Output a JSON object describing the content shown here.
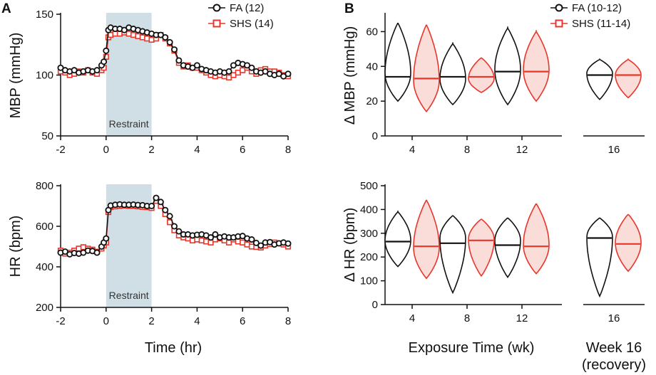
{
  "colors": {
    "fa": "#111111",
    "shs": "#e8362b",
    "shade": "#d0dfe6",
    "shs_fill": "#fadcd8"
  },
  "chart_data": [
    {
      "panel": "A",
      "type": "line",
      "ylabel": "MBP (mmHg)",
      "xlabel": "",
      "xlim": [
        -2,
        8
      ],
      "ylim": [
        50,
        150
      ],
      "xticks": [
        -2,
        0,
        2,
        4,
        6,
        8
      ],
      "yticks": [
        50,
        100,
        150
      ],
      "shade": {
        "x0": 0,
        "x1": 2,
        "label": "Restraint"
      },
      "legend": [
        "FA (12)",
        "SHS (14)"
      ],
      "series": [
        {
          "name": "FA (12)",
          "marker": "circle",
          "points": [
            [
              -2,
              106
            ],
            [
              -1.8,
              104
            ],
            [
              -1.6,
              103
            ],
            [
              -1.4,
              104
            ],
            [
              -1.2,
              102
            ],
            [
              -1,
              103
            ],
            [
              -0.8,
              104
            ],
            [
              -0.6,
              103
            ],
            [
              -0.4,
              104
            ],
            [
              -0.2,
              108
            ],
            [
              -0.1,
              111
            ],
            [
              0,
              120
            ],
            [
              0.1,
              137
            ],
            [
              0.2,
              139
            ],
            [
              0.4,
              138
            ],
            [
              0.6,
              138
            ],
            [
              0.8,
              137
            ],
            [
              1,
              139
            ],
            [
              1.2,
              138
            ],
            [
              1.4,
              137
            ],
            [
              1.6,
              136
            ],
            [
              1.8,
              135
            ],
            [
              2,
              134
            ],
            [
              2.2,
              133
            ],
            [
              2.4,
              133
            ],
            [
              2.6,
              131
            ],
            [
              2.8,
              127
            ],
            [
              3,
              121
            ],
            [
              3.2,
              112
            ],
            [
              3.4,
              108
            ],
            [
              3.6,
              107
            ],
            [
              3.8,
              106
            ],
            [
              4,
              108
            ],
            [
              4.2,
              105
            ],
            [
              4.4,
              104
            ],
            [
              4.6,
              103
            ],
            [
              4.8,
              102
            ],
            [
              5,
              103
            ],
            [
              5.2,
              102
            ],
            [
              5.4,
              103
            ],
            [
              5.6,
              108
            ],
            [
              5.8,
              110
            ],
            [
              6,
              109
            ],
            [
              6.2,
              108
            ],
            [
              6.4,
              106
            ],
            [
              6.6,
              103
            ],
            [
              6.8,
              102
            ],
            [
              7,
              103
            ],
            [
              7.2,
              101
            ],
            [
              7.4,
              100
            ],
            [
              7.6,
              101
            ],
            [
              7.8,
              99
            ],
            [
              8,
              101
            ]
          ]
        },
        {
          "name": "SHS (14)",
          "marker": "square",
          "points": [
            [
              -2,
              103
            ],
            [
              -1.8,
              102
            ],
            [
              -1.6,
              100
            ],
            [
              -1.4,
              101
            ],
            [
              -1.2,
              103
            ],
            [
              -1,
              102
            ],
            [
              -0.8,
              104
            ],
            [
              -0.6,
              102
            ],
            [
              -0.4,
              101
            ],
            [
              -0.2,
              104
            ],
            [
              -0.1,
              106
            ],
            [
              0,
              115
            ],
            [
              0.1,
              131
            ],
            [
              0.2,
              133
            ],
            [
              0.4,
              134
            ],
            [
              0.6,
              134
            ],
            [
              0.8,
              135
            ],
            [
              1,
              134
            ],
            [
              1.2,
              133
            ],
            [
              1.4,
              132
            ],
            [
              1.6,
              131
            ],
            [
              1.8,
              130
            ],
            [
              2,
              129
            ],
            [
              2.2,
              130
            ],
            [
              2.4,
              133
            ],
            [
              2.6,
              130
            ],
            [
              2.8,
              126
            ],
            [
              3,
              120
            ],
            [
              3.2,
              110
            ],
            [
              3.4,
              107
            ],
            [
              3.6,
              108
            ],
            [
              3.8,
              106
            ],
            [
              4,
              106
            ],
            [
              4.2,
              104
            ],
            [
              4.4,
              102
            ],
            [
              4.6,
              100
            ],
            [
              4.8,
              99
            ],
            [
              5,
              100
            ],
            [
              5.2,
              99
            ],
            [
              5.4,
              98
            ],
            [
              5.6,
              100
            ],
            [
              5.8,
              102
            ],
            [
              6,
              104
            ],
            [
              6.2,
              106
            ],
            [
              6.4,
              103
            ],
            [
              6.6,
              101
            ],
            [
              6.8,
              104
            ],
            [
              7,
              105
            ],
            [
              7.2,
              103
            ],
            [
              7.4,
              103
            ],
            [
              7.6,
              102
            ],
            [
              7.8,
              100
            ],
            [
              8,
              99
            ]
          ]
        }
      ]
    },
    {
      "panel": "A",
      "type": "line",
      "ylabel": "HR (bpm)",
      "xlabel": "Time (hr)",
      "xlim": [
        -2,
        8
      ],
      "ylim": [
        200,
        800
      ],
      "xticks": [
        -2,
        0,
        2,
        4,
        6,
        8
      ],
      "yticks": [
        200,
        400,
        600,
        800
      ],
      "shade": {
        "x0": 0,
        "x1": 2,
        "label": "Restraint"
      },
      "series": [
        {
          "name": "FA (12)",
          "marker": "circle",
          "points": [
            [
              -2,
              470
            ],
            [
              -1.8,
              475
            ],
            [
              -1.6,
              462
            ],
            [
              -1.4,
              468
            ],
            [
              -1.2,
              465
            ],
            [
              -1,
              470
            ],
            [
              -0.8,
              480
            ],
            [
              -0.6,
              478
            ],
            [
              -0.4,
              470
            ],
            [
              -0.2,
              500
            ],
            [
              -0.1,
              520
            ],
            [
              0,
              540
            ],
            [
              0.1,
              680
            ],
            [
              0.2,
              702
            ],
            [
              0.4,
              706
            ],
            [
              0.6,
              708
            ],
            [
              0.8,
              706
            ],
            [
              1,
              706
            ],
            [
              1.2,
              707
            ],
            [
              1.4,
              705
            ],
            [
              1.6,
              704
            ],
            [
              1.8,
              700
            ],
            [
              2,
              700
            ],
            [
              2.2,
              740
            ],
            [
              2.4,
              720
            ],
            [
              2.6,
              680
            ],
            [
              2.8,
              650
            ],
            [
              3,
              600
            ],
            [
              3.2,
              575
            ],
            [
              3.4,
              560
            ],
            [
              3.6,
              560
            ],
            [
              3.8,
              555
            ],
            [
              4,
              558
            ],
            [
              4.2,
              560
            ],
            [
              4.4,
              555
            ],
            [
              4.6,
              545
            ],
            [
              4.8,
              560
            ],
            [
              5,
              545
            ],
            [
              5.2,
              550
            ],
            [
              5.4,
              545
            ],
            [
              5.6,
              545
            ],
            [
              5.8,
              550
            ],
            [
              6,
              552
            ],
            [
              6.2,
              540
            ],
            [
              6.4,
              535
            ],
            [
              6.6,
              518
            ],
            [
              6.8,
              505
            ],
            [
              7,
              520
            ],
            [
              7.2,
              522
            ],
            [
              7.4,
              510
            ],
            [
              7.6,
              516
            ],
            [
              7.8,
              520
            ],
            [
              8,
              515
            ]
          ]
        },
        {
          "name": "SHS (14)",
          "marker": "square",
          "points": [
            [
              -2,
              480
            ],
            [
              -1.8,
              465
            ],
            [
              -1.6,
              470
            ],
            [
              -1.4,
              480
            ],
            [
              -1.2,
              490
            ],
            [
              -1,
              497
            ],
            [
              -0.8,
              490
            ],
            [
              -0.6,
              485
            ],
            [
              -0.4,
              475
            ],
            [
              -0.2,
              490
            ],
            [
              -0.1,
              505
            ],
            [
              0,
              520
            ],
            [
              0.1,
              670
            ],
            [
              0.2,
              695
            ],
            [
              0.4,
              698
            ],
            [
              0.6,
              700
            ],
            [
              0.8,
              702
            ],
            [
              1,
              700
            ],
            [
              1.2,
              700
            ],
            [
              1.4,
              698
            ],
            [
              1.6,
              695
            ],
            [
              1.8,
              694
            ],
            [
              2,
              690
            ],
            [
              2.2,
              725
            ],
            [
              2.4,
              700
            ],
            [
              2.6,
              660
            ],
            [
              2.8,
              620
            ],
            [
              3,
              580
            ],
            [
              3.2,
              555
            ],
            [
              3.4,
              545
            ],
            [
              3.6,
              540
            ],
            [
              3.8,
              530
            ],
            [
              4,
              535
            ],
            [
              4.2,
              530
            ],
            [
              4.4,
              525
            ],
            [
              4.6,
              520
            ],
            [
              4.8,
              535
            ],
            [
              5,
              540
            ],
            [
              5.2,
              530
            ],
            [
              5.4,
              520
            ],
            [
              5.6,
              535
            ],
            [
              5.8,
              525
            ],
            [
              6,
              520
            ],
            [
              6.2,
              510
            ],
            [
              6.4,
              500
            ],
            [
              6.6,
              498
            ],
            [
              6.8,
              495
            ],
            [
              7,
              505
            ],
            [
              7.2,
              512
            ],
            [
              7.4,
              520
            ],
            [
              7.6,
              516
            ],
            [
              7.8,
              510
            ],
            [
              8,
              500
            ]
          ]
        }
      ]
    },
    {
      "panel": "B",
      "type": "violin",
      "ylabel": "Δ MBP (mmHg)",
      "ylim": [
        0,
        70
      ],
      "yticks": [
        0,
        20,
        40,
        60
      ],
      "groups": [
        "4",
        "8",
        "12",
        "16"
      ],
      "legend": [
        "FA (10-12)",
        "SHS (11-14)"
      ],
      "series": [
        {
          "name": "FA (10-12)",
          "violins": [
            {
              "min": 20,
              "max": 65,
              "median": 34,
              "mode": 36
            },
            {
              "min": 18,
              "max": 53,
              "median": 34,
              "mode": 33
            },
            {
              "min": 18,
              "max": 62,
              "median": 37,
              "mode": 38
            },
            {
              "min": 21,
              "max": 44,
              "median": 35,
              "mode": 36
            }
          ]
        },
        {
          "name": "SHS (11-14)",
          "violins": [
            {
              "min": 14,
              "max": 64,
              "median": 33,
              "mode": 32
            },
            {
              "min": 25,
              "max": 45,
              "median": 34,
              "mode": 33
            },
            {
              "min": 20,
              "max": 60,
              "median": 37,
              "mode": 38
            },
            {
              "min": 22,
              "max": 44,
              "median": 35,
              "mode": 35
            }
          ]
        }
      ]
    },
    {
      "panel": "B",
      "type": "violin",
      "ylabel": "Δ HR (bpm)",
      "ylim": [
        0,
        500
      ],
      "yticks": [
        0,
        100,
        200,
        300,
        400,
        500
      ],
      "groups": [
        "4",
        "8",
        "12",
        "16"
      ],
      "xlabel": "Exposure Time (wk)",
      "xlabel2": [
        "Week 16",
        "(recovery)"
      ],
      "series": [
        {
          "name": "FA (10-12)",
          "violins": [
            {
              "min": 160,
              "max": 390,
              "median": 265,
              "mode": 270
            },
            {
              "min": 50,
              "max": 375,
              "median": 258,
              "mode": 280
            },
            {
              "min": 115,
              "max": 365,
              "median": 250,
              "mode": 270
            },
            {
              "min": 35,
              "max": 365,
              "median": 280,
              "mode": 285
            }
          ]
        },
        {
          "name": "SHS (11-14)",
          "violins": [
            {
              "min": 110,
              "max": 440,
              "median": 245,
              "mode": 240
            },
            {
              "min": 120,
              "max": 360,
              "median": 270,
              "mode": 275
            },
            {
              "min": 130,
              "max": 425,
              "median": 245,
              "mode": 250
            },
            {
              "min": 140,
              "max": 380,
              "median": 255,
              "mode": 260
            }
          ]
        }
      ]
    }
  ]
}
